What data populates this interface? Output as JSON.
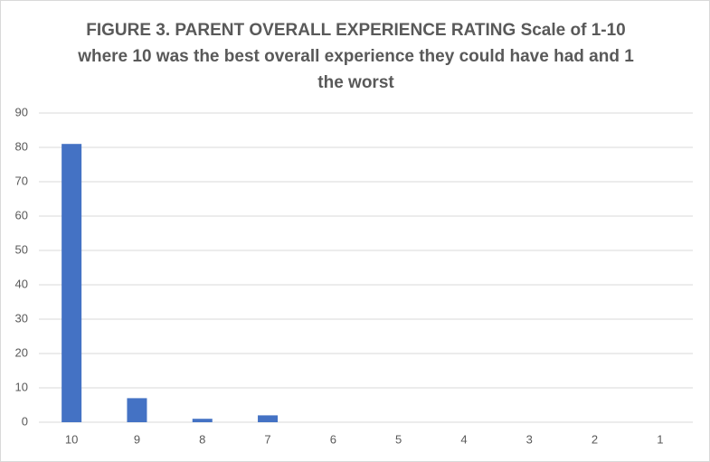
{
  "chart_data": {
    "type": "bar",
    "title": "FIGURE 3. PARENT OVERALL EXPERIENCE RATING Scale of 1-10 where 10 was the best overall experience they could have had and 1 the worst",
    "categories": [
      "10",
      "9",
      "8",
      "7",
      "6",
      "5",
      "4",
      "3",
      "2",
      "1"
    ],
    "values": [
      81,
      7,
      1,
      2,
      0,
      0,
      0,
      0,
      0,
      0
    ],
    "color": "#4472c4",
    "ylim": [
      0,
      90
    ],
    "yticks": [
      0,
      10,
      20,
      30,
      40,
      50,
      60,
      70,
      80,
      90
    ],
    "grid": true
  }
}
